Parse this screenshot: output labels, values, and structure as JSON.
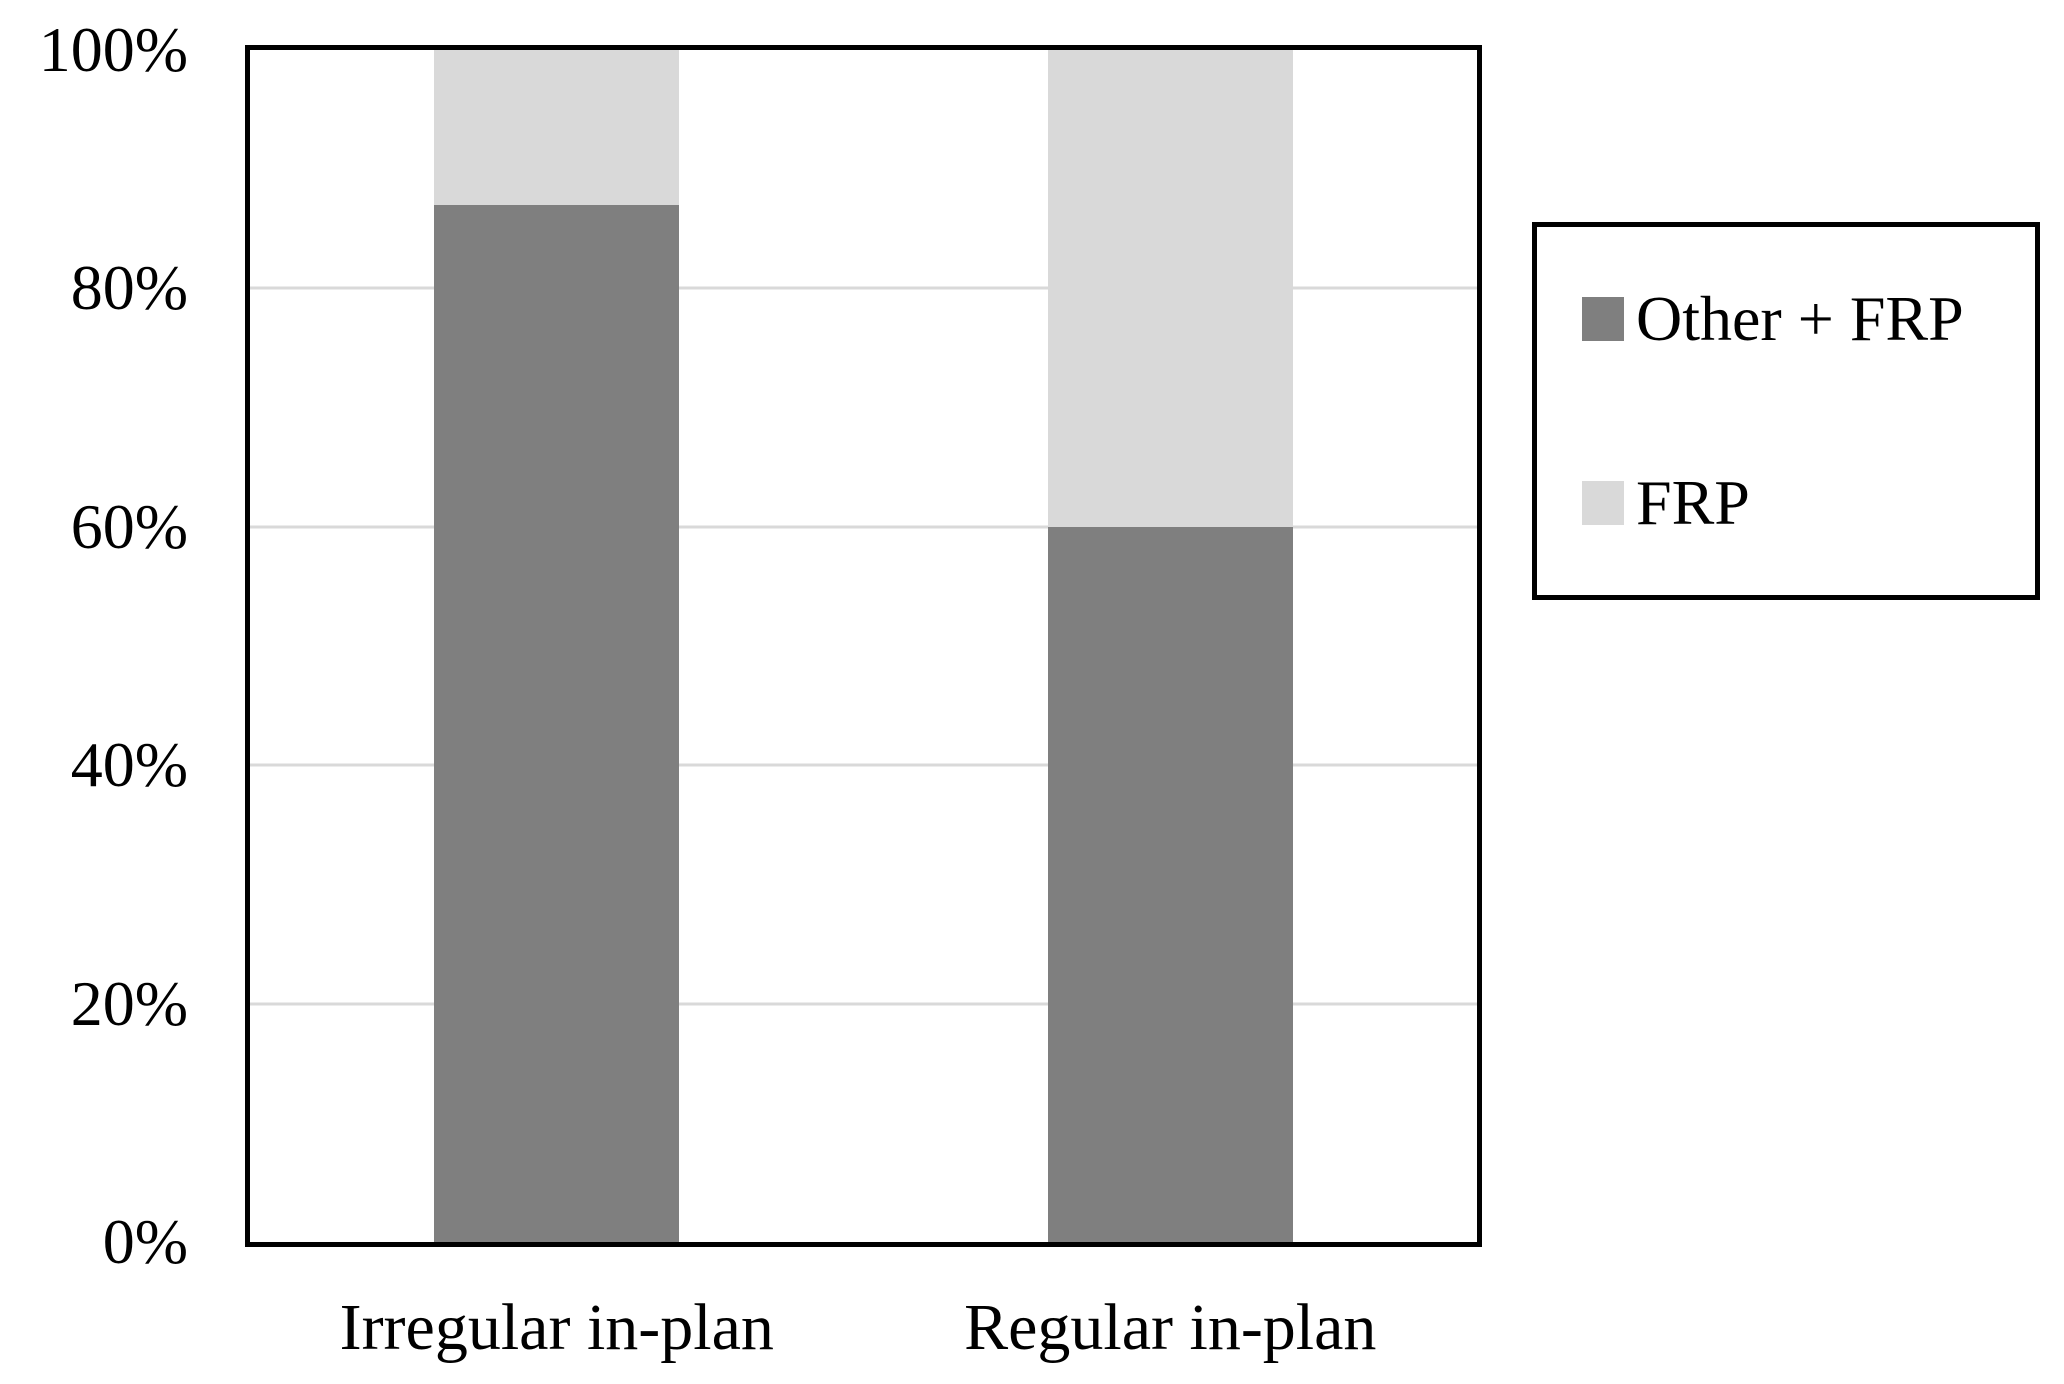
{
  "figure": {
    "background": "#FFFFFF",
    "text_color": "#000000"
  },
  "chart_data": {
    "type": "bar",
    "subtype": "stacked-100-percent",
    "title": "",
    "xlabel": "",
    "ylabel": "",
    "categories": [
      "Irregular in-plan",
      "Regular in-plan"
    ],
    "series": [
      {
        "name": "Other + FRP",
        "color": "#7F7F7F",
        "values": [
          87,
          60
        ]
      },
      {
        "name": "FRP",
        "color": "#D9D9D9",
        "values": [
          13,
          40
        ]
      }
    ],
    "ylim": [
      0,
      100
    ],
    "ytick_values": [
      0,
      20,
      40,
      60,
      80,
      100
    ],
    "yticks": [
      "0%",
      "20%",
      "40%",
      "60%",
      "80%",
      "100%"
    ],
    "gridlines": [
      20,
      40,
      60,
      80
    ],
    "gridline_color": "#D9D9D9",
    "plot_border_color": "#000000",
    "legend": {
      "position": "right",
      "border_color": "#000000",
      "entries": [
        "Other + FRP",
        "FRP"
      ]
    },
    "category_centers_pct": [
      25,
      75
    ],
    "bar_width_pct": 20
  }
}
